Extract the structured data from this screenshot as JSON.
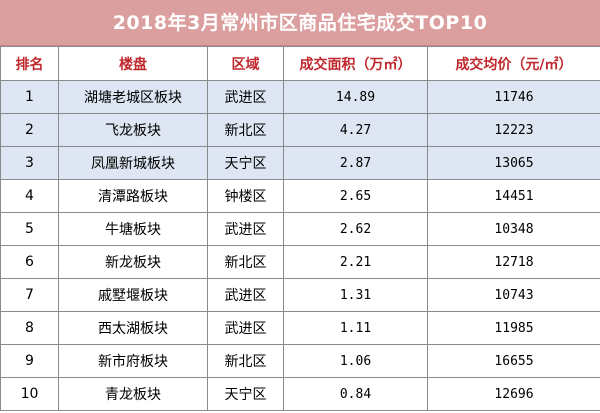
{
  "title": "2018年3月常州市区商品住宅成交TOP10",
  "headers": {
    "rank": "排名",
    "block": "楼盘",
    "district": "区域",
    "area": "成交面积（万㎡）",
    "price": "成交均价（元/㎡）"
  },
  "rows": [
    {
      "rank": "1",
      "block": "湖塘老城区板块",
      "district": "武进区",
      "area": "14.89",
      "price": "11746"
    },
    {
      "rank": "2",
      "block": "飞龙板块",
      "district": "新北区",
      "area": "4.27",
      "price": "12223"
    },
    {
      "rank": "3",
      "block": "凤凰新城板块",
      "district": "天宁区",
      "area": "2.87",
      "price": "13065"
    },
    {
      "rank": "4",
      "block": "清潭路板块",
      "district": "钟楼区",
      "area": "2.65",
      "price": "14451"
    },
    {
      "rank": "5",
      "block": "牛塘板块",
      "district": "武进区",
      "area": "2.62",
      "price": "10348"
    },
    {
      "rank": "6",
      "block": "新龙板块",
      "district": "新北区",
      "area": "2.21",
      "price": "12718"
    },
    {
      "rank": "7",
      "block": "戚墅堰板块",
      "district": "武进区",
      "area": "1.31",
      "price": "10743"
    },
    {
      "rank": "8",
      "block": "西太湖板块",
      "district": "武进区",
      "area": "1.11",
      "price": "11985"
    },
    {
      "rank": "9",
      "block": "新市府板块",
      "district": "新北区",
      "area": "1.06",
      "price": "16655"
    },
    {
      "rank": "10",
      "block": "青龙板块",
      "district": "天宁区",
      "area": "0.84",
      "price": "12696"
    }
  ],
  "colors": {
    "title_background": "#dc9f9f",
    "header_text": "#c0282d",
    "highlight_row": "#dde6f2"
  }
}
